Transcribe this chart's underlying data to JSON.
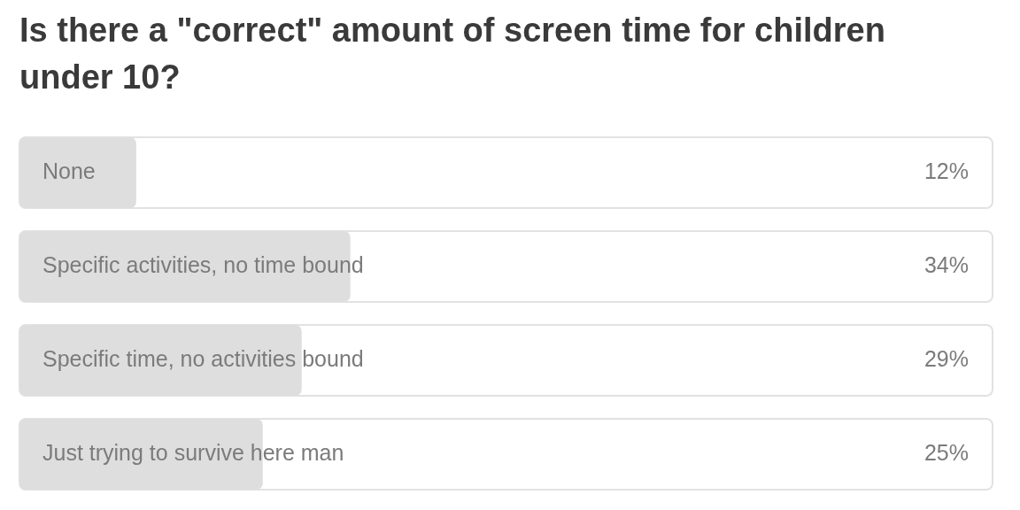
{
  "chart_data": {
    "type": "bar",
    "orientation": "horizontal",
    "title": "Is there a \"correct\" amount of screen time for children under 10?",
    "categories": [
      "None",
      "Specific activities, no time bound",
      "Specific time, no activities bound",
      "Just trying to survive here man"
    ],
    "values": [
      12,
      34,
      29,
      25
    ],
    "value_labels": [
      "12%",
      "34%",
      "29%",
      "25%"
    ],
    "color": "#dedede",
    "xlim": [
      0,
      100
    ],
    "tick_labels": "y"
  }
}
